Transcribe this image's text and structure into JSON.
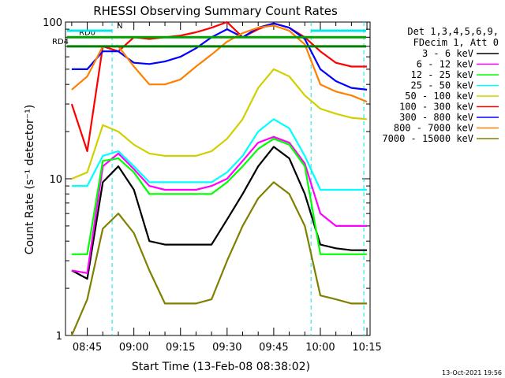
{
  "chart_data": {
    "type": "line",
    "title": "RHESSI Observing Summary Count Rates",
    "xlabel": "Start Time (13-Feb-08 08:38:02)",
    "ylabel": "Count Rate (s⁻¹ detector⁻¹)",
    "yscale": "log",
    "ylim": [
      1,
      100
    ],
    "xlim": [
      "08:38",
      "10:16"
    ],
    "x_ticks": [
      "08:45",
      "09:00",
      "09:15",
      "09:30",
      "09:45",
      "10:00",
      "10:15"
    ],
    "y_ticks": [
      "1",
      "10",
      "100"
    ],
    "legend_position": "right",
    "legend_header": [
      "Det 1,3,4,5,6,9,",
      "FDecim 1, Att 0"
    ],
    "timestamp": "13-Oct-2021 19:56",
    "flags": [
      {
        "name": "RD0",
        "color": "#00a000",
        "y": 80
      },
      {
        "name": "RD4",
        "color": "#008000",
        "y": 70
      },
      {
        "name": "N",
        "color": "#00e8e8",
        "y": 88
      }
    ],
    "x": [
      "08:40",
      "08:45",
      "08:50",
      "08:55",
      "09:00",
      "09:05",
      "09:10",
      "09:15",
      "09:20",
      "09:25",
      "09:30",
      "09:35",
      "09:40",
      "09:45",
      "09:50",
      "09:55",
      "10:00",
      "10:05",
      "10:10",
      "10:15"
    ],
    "series": [
      {
        "name": "3 - 6 keV",
        "color": "#000000",
        "values": [
          2.6,
          2.3,
          9.5,
          12.0,
          8.5,
          4.0,
          3.8,
          3.8,
          3.8,
          3.8,
          5.5,
          8.0,
          12.0,
          16.0,
          13.5,
          8.0,
          3.8,
          3.6,
          3.5,
          3.5
        ]
      },
      {
        "name": "6 - 12 keV",
        "color": "#ff00ff",
        "values": [
          2.6,
          2.5,
          12.0,
          14.5,
          11.5,
          9.0,
          8.5,
          8.5,
          8.5,
          9.0,
          10.0,
          13.0,
          17.0,
          18.5,
          17.0,
          12.5,
          6.0,
          5.0,
          5.0,
          5.0
        ]
      },
      {
        "name": "12 - 25 keV",
        "color": "#00ff00",
        "values": [
          3.3,
          3.3,
          13.0,
          13.5,
          11.0,
          8.0,
          8.0,
          8.0,
          8.0,
          8.0,
          9.5,
          12.0,
          15.5,
          18.0,
          16.5,
          12.0,
          3.3,
          3.3,
          3.3,
          3.3
        ]
      },
      {
        "name": "25 - 50 keV",
        "color": "#00ffff",
        "values": [
          9.0,
          9.0,
          14.0,
          15.0,
          12.0,
          9.5,
          9.5,
          9.5,
          9.5,
          9.5,
          11.0,
          14.0,
          20.0,
          24.0,
          21.0,
          14.0,
          8.5,
          8.5,
          8.5,
          8.5
        ]
      },
      {
        "name": "50 - 100 keV",
        "color": "#d0d000",
        "values": [
          10.0,
          11.0,
          22.0,
          20.0,
          16.5,
          14.5,
          14.0,
          14.0,
          14.0,
          15.0,
          18.0,
          24.0,
          38.0,
          50.0,
          45.0,
          34.0,
          28.0,
          26.0,
          24.5,
          24.0
        ]
      },
      {
        "name": "100 - 300 keV",
        "color": "#ff0000",
        "values": [
          30.0,
          15.0,
          70.0,
          65.0,
          80.0,
          78.0,
          80.0,
          82.0,
          86.0,
          92.0,
          100.0,
          80.0,
          90.0,
          98.0,
          92.0,
          80.0,
          65.0,
          55.0,
          52.0,
          52.0
        ]
      },
      {
        "name": "300 - 800 keV",
        "color": "#0000ff",
        "values": [
          50.0,
          50.0,
          65.0,
          65.0,
          55.0,
          54.0,
          56.0,
          60.0,
          68.0,
          80.0,
          90.0,
          80.0,
          92.0,
          98.0,
          92.0,
          78.0,
          50.0,
          42.0,
          38.0,
          37.0
        ]
      },
      {
        "name": "800 - 7000 keV",
        "color": "#ff8000",
        "values": [
          37.0,
          45.0,
          70.0,
          70.0,
          52.0,
          40.0,
          40.0,
          43.0,
          52.0,
          62.0,
          75.0,
          85.0,
          92.0,
          95.0,
          88.0,
          72.0,
          40.0,
          36.0,
          34.0,
          31.0
        ]
      },
      {
        "name": "7000 - 15000 keV",
        "color": "#808000",
        "values": [
          1.0,
          1.7,
          4.8,
          6.0,
          4.5,
          2.6,
          1.6,
          1.6,
          1.6,
          1.7,
          3.0,
          5.0,
          7.5,
          9.5,
          8.0,
          5.0,
          1.8,
          1.7,
          1.6,
          1.6
        ]
      }
    ],
    "vlines": [
      {
        "t": "08:53",
        "color": "#00e8e8"
      },
      {
        "t": "09:57",
        "color": "#00e8e8"
      },
      {
        "t": "10:14",
        "color": "#00e8e8"
      }
    ]
  }
}
